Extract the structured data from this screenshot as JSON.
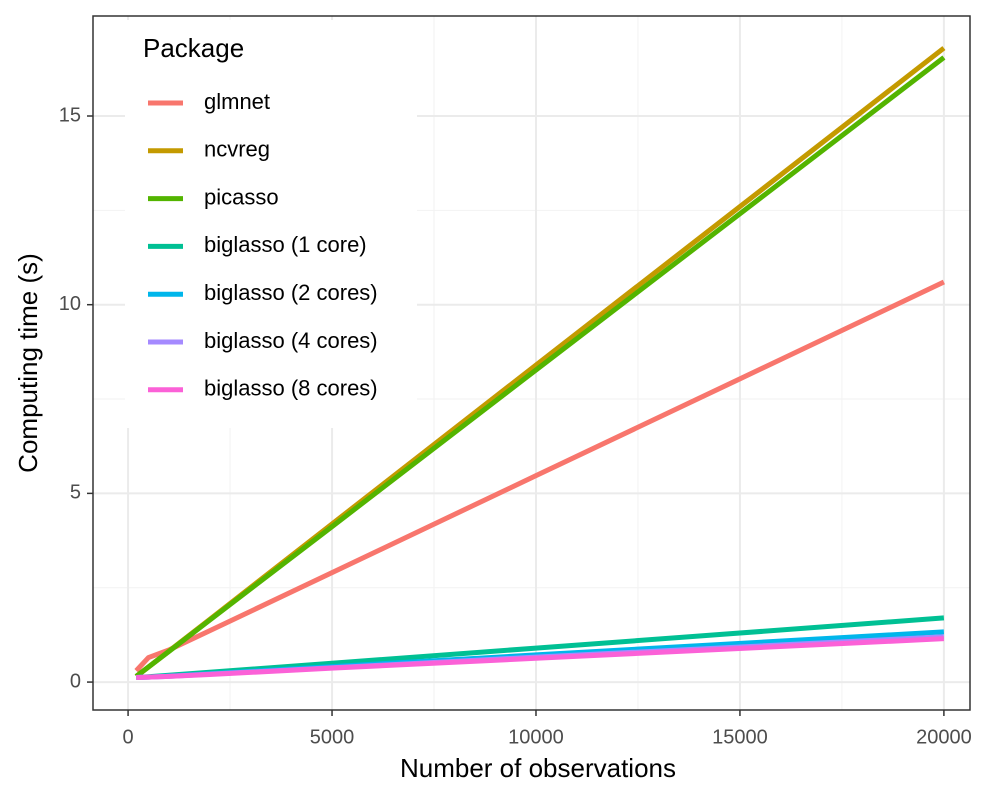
{
  "chart_data": {
    "type": "line",
    "x_label": "Number of observations",
    "y_label": "Computing time (s)",
    "legend_title": "Package",
    "legend": "top-left",
    "grid": true,
    "x": [
      200,
      500,
      1000,
      2000,
      5000,
      10000,
      20000
    ],
    "series": [
      {
        "name": "glmnet",
        "color": "#F8766D",
        "values": [
          0.3,
          0.65,
          0.85,
          1.36,
          2.9,
          5.47,
          10.6
        ]
      },
      {
        "name": "ncvreg",
        "color": "#C49A00",
        "values": [
          0.15,
          0.4,
          0.82,
          1.66,
          4.19,
          8.4,
          16.8
        ]
      },
      {
        "name": "picasso",
        "color": "#53B400",
        "values": [
          0.15,
          0.4,
          0.81,
          1.64,
          4.12,
          8.27,
          16.55
        ]
      },
      {
        "name": "biglasso (1 core)",
        "color": "#00C094",
        "values": [
          0.12,
          0.14,
          0.18,
          0.26,
          0.5,
          0.9,
          1.7
        ]
      },
      {
        "name": "biglasso (2 cores)",
        "color": "#00B6EB",
        "values": [
          0.12,
          0.13,
          0.16,
          0.22,
          0.41,
          0.72,
          1.33
        ]
      },
      {
        "name": "biglasso (4 cores)",
        "color": "#A58AFF",
        "values": [
          0.12,
          0.13,
          0.15,
          0.21,
          0.38,
          0.66,
          1.2
        ]
      },
      {
        "name": "biglasso (8 cores)",
        "color": "#FB61D7",
        "values": [
          0.12,
          0.13,
          0.15,
          0.2,
          0.37,
          0.63,
          1.15
        ]
      }
    ],
    "xlim": [
      -860,
      20640
    ],
    "xticks": [
      0,
      5000,
      10000,
      15000,
      20000
    ],
    "ylim": [
      -0.74,
      17.65
    ],
    "yticks": [
      0,
      5,
      10,
      15
    ]
  }
}
